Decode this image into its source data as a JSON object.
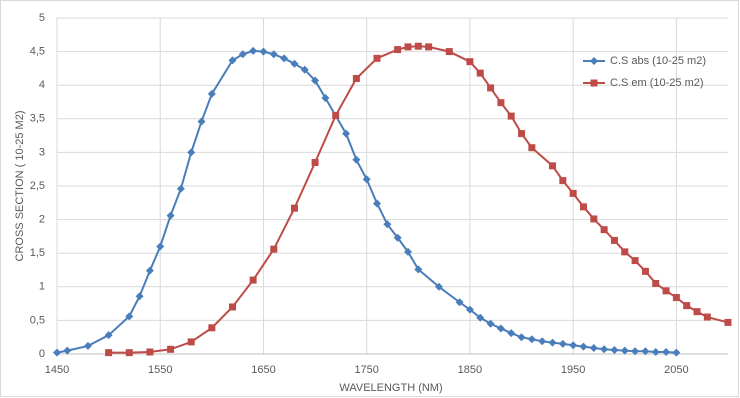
{
  "chart_data": {
    "type": "line",
    "x_label": "WAVELENGTH (NM)",
    "y_label": "CROSS SECTION ( 10-25 M2)",
    "xlim": [
      1450,
      2100
    ],
    "xticks": [
      1450,
      1550,
      1650,
      1750,
      1850,
      1950,
      2050
    ],
    "ylim": [
      0,
      5
    ],
    "yticks": [
      0,
      {
        "value": 0.5,
        "label": "0,5"
      },
      1,
      {
        "value": 1.5,
        "label": "1,5"
      },
      2,
      {
        "value": 2.5,
        "label": "2,5"
      },
      3,
      {
        "value": 3.5,
        "label": "3,5"
      },
      4,
      {
        "value": 4.5,
        "label": "4,5"
      },
      5
    ],
    "grid": true,
    "legend": "right",
    "series": [
      {
        "name": "C.S abs (10-25 m2)",
        "color": "#4a7ebb",
        "marker": "diamond",
        "x": [
          1450,
          1460,
          1480,
          1500,
          1520,
          1530,
          1540,
          1550,
          1560,
          1570,
          1580,
          1590,
          1600,
          1620,
          1630,
          1640,
          1650,
          1660,
          1670,
          1680,
          1690,
          1700,
          1710,
          1730,
          1740,
          1750,
          1760,
          1770,
          1780,
          1790,
          1800,
          1820,
          1840,
          1850,
          1860,
          1870,
          1880,
          1890,
          1900,
          1910,
          1920,
          1930,
          1940,
          1950,
          1960,
          1970,
          1980,
          1990,
          2000,
          2010,
          2020,
          2030,
          2040,
          2050
        ],
        "values": [
          0.02,
          0.05,
          0.12,
          0.28,
          0.56,
          0.86,
          1.24,
          1.6,
          2.06,
          2.46,
          3.0,
          3.46,
          3.87,
          4.37,
          4.46,
          4.51,
          4.5,
          4.46,
          4.4,
          4.32,
          4.23,
          4.07,
          3.81,
          3.28,
          2.89,
          2.6,
          2.24,
          1.93,
          1.73,
          1.52,
          1.26,
          1.0,
          0.77,
          0.66,
          0.54,
          0.45,
          0.38,
          0.31,
          0.25,
          0.22,
          0.19,
          0.17,
          0.15,
          0.13,
          0.11,
          0.09,
          0.07,
          0.06,
          0.05,
          0.04,
          0.04,
          0.03,
          0.03,
          0.02
        ]
      },
      {
        "name": "C.S em (10-25 m2)",
        "color": "#be4b48",
        "marker": "square",
        "x": [
          1500,
          1520,
          1540,
          1560,
          1580,
          1600,
          1620,
          1640,
          1660,
          1680,
          1700,
          1720,
          1740,
          1760,
          1780,
          1790,
          1800,
          1810,
          1830,
          1850,
          1860,
          1870,
          1880,
          1890,
          1900,
          1910,
          1930,
          1940,
          1950,
          1960,
          1970,
          1980,
          1990,
          2000,
          2010,
          2020,
          2030,
          2040,
          2050,
          2060,
          2070,
          2080,
          2100
        ],
        "values": [
          0.02,
          0.02,
          0.03,
          0.07,
          0.18,
          0.39,
          0.7,
          1.1,
          1.56,
          2.17,
          2.85,
          3.55,
          4.1,
          4.4,
          4.53,
          4.57,
          4.58,
          4.57,
          4.5,
          4.35,
          4.18,
          3.96,
          3.74,
          3.54,
          3.28,
          3.07,
          2.8,
          2.58,
          2.39,
          2.19,
          2.01,
          1.85,
          1.69,
          1.52,
          1.39,
          1.23,
          1.05,
          0.94,
          0.84,
          0.72,
          0.63,
          0.55,
          0.47
        ]
      }
    ]
  }
}
